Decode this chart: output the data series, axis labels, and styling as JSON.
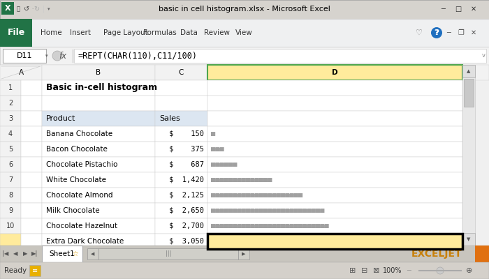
{
  "title_bar_text": "basic in cell histogram.xlsx - Microsoft Excel",
  "formula_bar_text": "=REPT(CHAR(110),C11/100)",
  "cell_ref": "D11",
  "sheet_title": "Basic in-cell histogram",
  "headers": [
    "Product",
    "Sales"
  ],
  "products": [
    "Banana Chocolate",
    "Bacon Chocolate",
    "Chocolate Pistachio",
    "White Chocolate",
    "Chocolate Almond",
    "Milk Chocolate",
    "Chocolate Hazelnut",
    "Extra Dark Chocolate"
  ],
  "sales": [
    150,
    375,
    687,
    1420,
    2125,
    2650,
    2700,
    3050
  ],
  "sales_display": [
    "$    150",
    "$    375",
    "$    687",
    "$  1,420",
    "$  2,125",
    "$  2,650",
    "$  2,700",
    "$  3,050"
  ],
  "bar_color": "#A0A0A0",
  "header_bg": "#DCE6F1",
  "selected_col_bg": "#FFEB9C",
  "bg_color": "#F0F0F0",
  "excel_green": "#217346",
  "cell_border": "#CCCCCC",
  "white": "#FFFFFF",
  "title_bar_bg": "#D6D3CE",
  "ribbon_bg": "#EFF0F1",
  "formula_bg": "#F2F2F2",
  "sheet_area_bg": "#FFFFFF",
  "row_header_bg": "#F2F2F2",
  "tab_bar_bg": "#C8C5BE",
  "status_bar_bg": "#D4D0CA",
  "vscroll_bg": "#E8E8E8",
  "vscroll_thumb": "#C8C8C8",
  "highlight_green": "#4EA64E",
  "text_blue": "#1F3864",
  "dark_text": "#000000",
  "gray_text": "#666666"
}
